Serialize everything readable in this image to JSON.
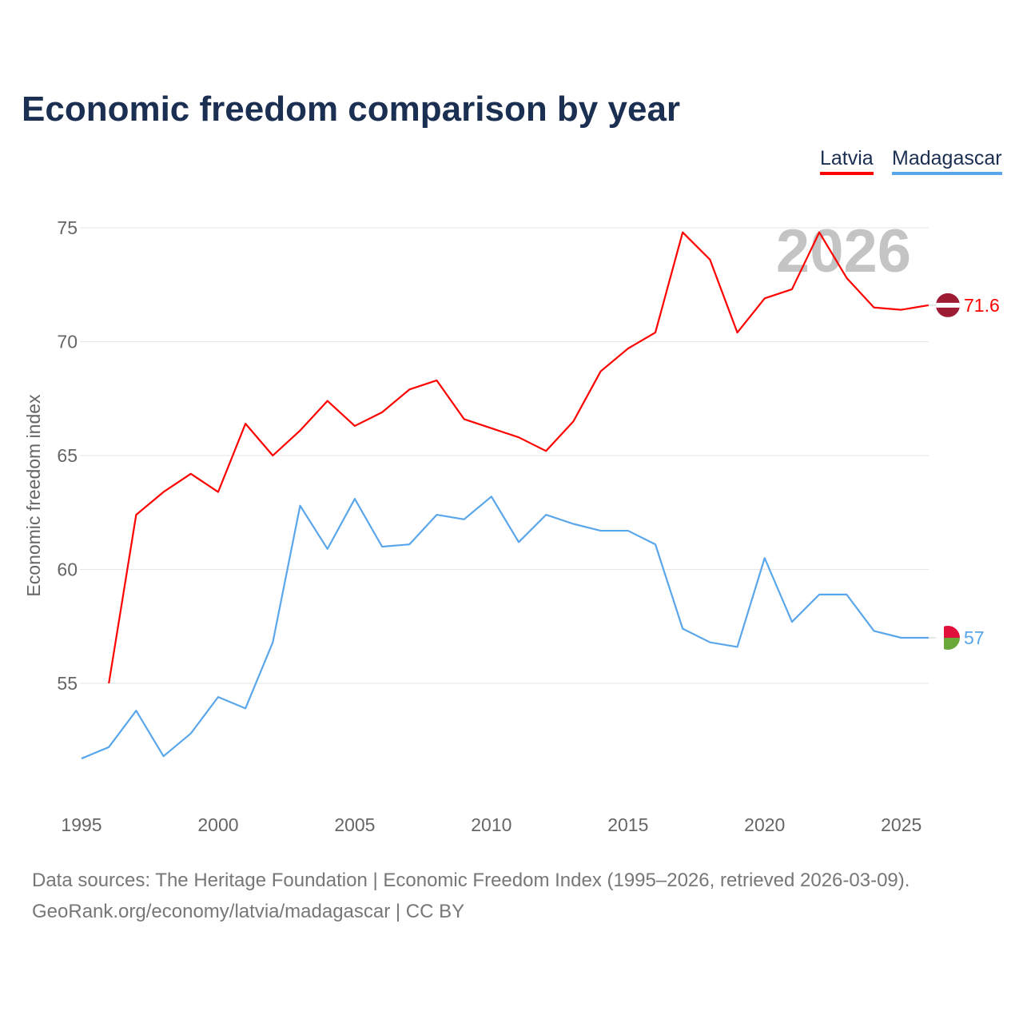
{
  "chart_data": {
    "type": "line",
    "title": "Economic freedom comparison by year",
    "xlabel": "",
    "ylabel": "Economic freedom index",
    "xlim": [
      1995,
      2026
    ],
    "ylim": [
      50.5,
      77
    ],
    "xticks": [
      1995,
      2000,
      2005,
      2010,
      2015,
      2020,
      2025
    ],
    "yticks": [
      55,
      60,
      65,
      70,
      75
    ],
    "grid": true,
    "legend_position": "top-right",
    "watermark_year": "2026",
    "series": [
      {
        "name": "Latvia",
        "color": "#ff0000",
        "end_label": "71.6",
        "x": [
          1996,
          1997,
          1998,
          1999,
          2000,
          2001,
          2002,
          2003,
          2004,
          2005,
          2006,
          2007,
          2008,
          2009,
          2010,
          2011,
          2012,
          2013,
          2014,
          2015,
          2016,
          2017,
          2018,
          2019,
          2020,
          2021,
          2022,
          2023,
          2024,
          2025,
          2026
        ],
        "values": [
          55.0,
          62.4,
          63.4,
          64.2,
          63.4,
          66.4,
          65.0,
          66.1,
          67.4,
          66.3,
          66.9,
          67.9,
          68.3,
          66.6,
          66.2,
          65.8,
          65.2,
          66.5,
          68.7,
          69.7,
          70.4,
          74.8,
          73.6,
          70.4,
          71.9,
          72.3,
          74.8,
          72.8,
          71.5,
          71.4,
          71.6
        ]
      },
      {
        "name": "Madagascar",
        "color": "#5aa6ea",
        "end_label": "57",
        "x": [
          1995,
          1996,
          1997,
          1998,
          1999,
          2000,
          2001,
          2002,
          2003,
          2004,
          2005,
          2006,
          2007,
          2008,
          2009,
          2010,
          2011,
          2012,
          2013,
          2014,
          2015,
          2016,
          2017,
          2018,
          2019,
          2020,
          2021,
          2022,
          2023,
          2024,
          2025,
          2026
        ],
        "values": [
          51.7,
          52.2,
          53.8,
          51.8,
          52.8,
          54.4,
          53.9,
          56.8,
          62.8,
          60.9,
          63.1,
          61.0,
          61.1,
          62.4,
          62.2,
          63.2,
          61.2,
          62.4,
          62.0,
          61.7,
          61.7,
          61.1,
          57.4,
          56.8,
          56.6,
          60.5,
          57.7,
          58.9,
          58.9,
          57.3,
          57.0,
          57.0
        ]
      }
    ]
  },
  "footer": {
    "line1": "Data sources: The Heritage Foundation | Economic Freedom Index (1995–2026, retrieved 2026-03-09).",
    "line2": "GeoRank.org/economy/latvia/madagascar | CC BY"
  }
}
